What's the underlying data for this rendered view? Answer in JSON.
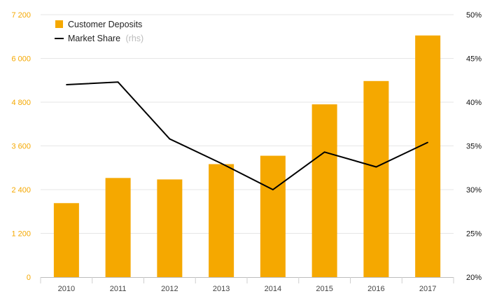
{
  "chart_data": {
    "type": "bar",
    "categories": [
      "2010",
      "2011",
      "2012",
      "2013",
      "2014",
      "2015",
      "2016",
      "2017"
    ],
    "series": [
      {
        "name": "Customer Deposits",
        "type": "bar",
        "axis": "left",
        "color": "#f5a800",
        "values": [
          2030,
          2720,
          2680,
          3100,
          3330,
          4740,
          5380,
          6630
        ]
      },
      {
        "name": "Market Share",
        "name_suffix": "(rhs)",
        "type": "line",
        "axis": "right",
        "color": "#000000",
        "values": [
          42.0,
          42.3,
          35.8,
          33.0,
          30.0,
          34.3,
          32.6,
          35.4
        ]
      }
    ],
    "y_left": {
      "min": 0,
      "max": 7200,
      "ticks": [
        0,
        1200,
        2400,
        3600,
        4800,
        6000,
        7200
      ],
      "tick_labels": [
        "0",
        "1 200",
        "2 400",
        "3 600",
        "4 800",
        "6 000",
        "7 200"
      ],
      "label_color": "#f5a800"
    },
    "y_right": {
      "min": 20,
      "max": 50,
      "ticks": [
        20,
        25,
        30,
        35,
        40,
        45,
        50
      ],
      "tick_labels": [
        "20%",
        "25%",
        "30%",
        "35%",
        "40%",
        "45%",
        "50%"
      ],
      "label_color": "#111111"
    },
    "grid": true,
    "legend_position": "top-left"
  }
}
